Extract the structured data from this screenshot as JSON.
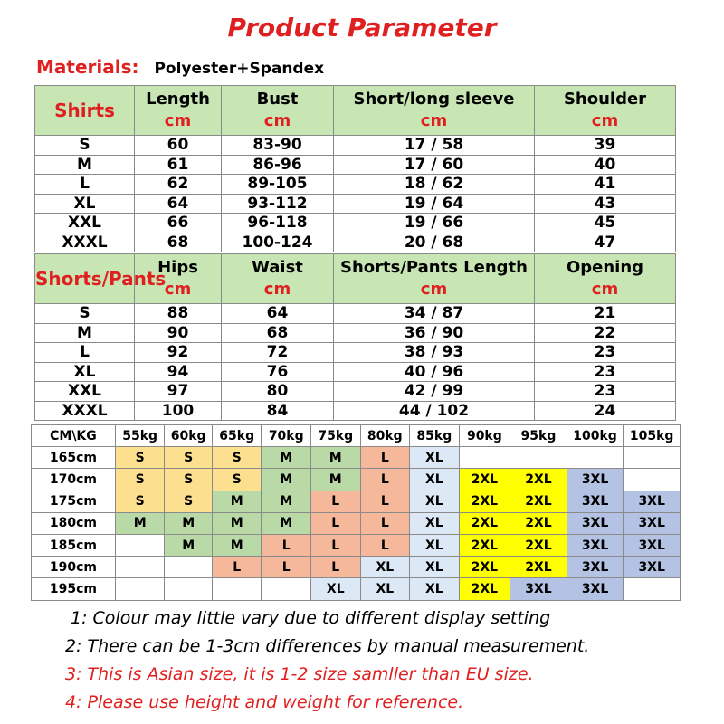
{
  "title": "Product Parameter",
  "materials": {
    "label": "Materials:",
    "value": "Polyester+Spandex"
  },
  "shirts": {
    "category": "Shirts",
    "unit": "cm",
    "columns": [
      "Length",
      "Bust",
      "Short/long sleeve",
      "Shoulder"
    ],
    "rows": [
      [
        "S",
        "60",
        "83-90",
        "17 / 58",
        "39"
      ],
      [
        "M",
        "61",
        "86-96",
        "17 / 60",
        "40"
      ],
      [
        "L",
        "62",
        "89-105",
        "18 / 62",
        "41"
      ],
      [
        "XL",
        "64",
        "93-112",
        "19 / 64",
        "43"
      ],
      [
        "XXL",
        "66",
        "96-118",
        "19 / 66",
        "45"
      ],
      [
        "XXXL",
        "68",
        "100-124",
        "20 / 68",
        "47"
      ]
    ]
  },
  "pants": {
    "category": "Shorts/Pants",
    "unit": "cm",
    "columns": [
      "Hips",
      "Waist",
      "Shorts/Pants Length",
      "Opening"
    ],
    "rows": [
      [
        "S",
        "88",
        "64",
        "34 / 87",
        "21"
      ],
      [
        "M",
        "90",
        "68",
        "36 / 90",
        "22"
      ],
      [
        "L",
        "92",
        "72",
        "38 / 93",
        "23"
      ],
      [
        "XL",
        "94",
        "76",
        "40 / 96",
        "23"
      ],
      [
        "XXL",
        "97",
        "80",
        "42 / 99",
        "23"
      ],
      [
        "XXXL",
        "100",
        "84",
        "44 / 102",
        "24"
      ]
    ]
  },
  "fit_chart": {
    "corner": "CM\\KG",
    "weights": [
      "55kg",
      "60kg",
      "65kg",
      "70kg",
      "75kg",
      "80kg",
      "85kg",
      "90kg",
      "95kg",
      "100kg",
      "105kg"
    ],
    "rows": [
      {
        "height": "165cm",
        "sizes": [
          "S",
          "S",
          "S",
          "M",
          "M",
          "L",
          "XL",
          "",
          "",
          "",
          ""
        ]
      },
      {
        "height": "170cm",
        "sizes": [
          "S",
          "S",
          "S",
          "M",
          "M",
          "L",
          "XL",
          "2XL",
          "2XL",
          "3XL",
          ""
        ]
      },
      {
        "height": "175cm",
        "sizes": [
          "S",
          "S",
          "M",
          "M",
          "L",
          "L",
          "XL",
          "2XL",
          "2XL",
          "3XL",
          "3XL"
        ]
      },
      {
        "height": "180cm",
        "sizes": [
          "M",
          "M",
          "M",
          "M",
          "L",
          "L",
          "XL",
          "2XL",
          "2XL",
          "3XL",
          "3XL"
        ]
      },
      {
        "height": "185cm",
        "sizes": [
          "",
          "M",
          "M",
          "L",
          "L",
          "L",
          "XL",
          "2XL",
          "2XL",
          "3XL",
          "3XL"
        ]
      },
      {
        "height": "190cm",
        "sizes": [
          "",
          "",
          "L",
          "L",
          "L",
          "XL",
          "XL",
          "2XL",
          "2XL",
          "3XL",
          "3XL"
        ]
      },
      {
        "height": "195cm",
        "sizes": [
          "",
          "",
          "",
          "",
          "XL",
          "XL",
          "XL",
          "2XL",
          "3XL",
          "3XL",
          ""
        ]
      }
    ]
  },
  "notes": [
    {
      "text": "1: Colour may little vary due to different display setting",
      "color": "#000000"
    },
    {
      "text": "2: There can be 1-3cm differences by manual measurement.",
      "color": "#000000"
    },
    {
      "text": "3: This is Asian size, it is 1-2 size samller than EU size.",
      "color": "#e02020"
    },
    {
      "text": "4: Please use height and weight for reference.",
      "color": "#e02020"
    }
  ]
}
